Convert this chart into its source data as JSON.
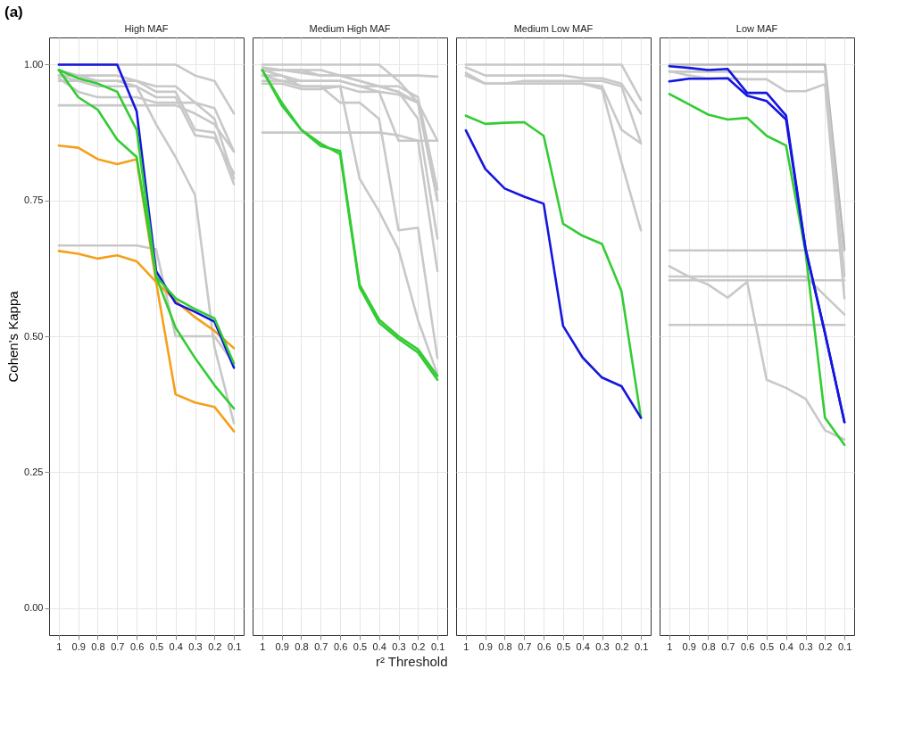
{
  "chart_data": [
    {
      "type": "line",
      "title": "High MAF",
      "ylabel": "Cohen's Kappa",
      "annotations": [
        "(a)"
      ],
      "grid": true,
      "categories": [
        "1",
        "0.9",
        "0.8",
        "0.7",
        "0.6",
        "0.5",
        "0.4",
        "0.3",
        "0.2",
        "0.1"
      ],
      "ylim": [
        -0.05,
        1.05
      ],
      "yticks": [
        {
          "value": 0,
          "label": "0.00"
        },
        {
          "value": 0.25,
          "label": "0.25"
        },
        {
          "value": 0.5,
          "label": "0.50"
        },
        {
          "value": 0.75,
          "label": "0.75"
        },
        {
          "value": 1,
          "label": "1.00"
        }
      ],
      "series": [
        {
          "color": "#c8c8c8",
          "values": [
            1.0,
            1.0,
            1.0,
            1.0,
            1.0,
            1.0,
            1.0,
            0.98,
            0.97,
            0.91
          ]
        },
        {
          "color": "#c8c8c8",
          "values": [
            0.98,
            0.98,
            0.98,
            0.98,
            0.97,
            0.96,
            0.96,
            0.93,
            0.9,
            0.79
          ]
        },
        {
          "color": "#c8c8c8",
          "values": [
            0.97,
            0.97,
            0.97,
            0.97,
            0.97,
            0.95,
            0.95,
            0.88,
            0.875,
            0.78
          ]
        },
        {
          "color": "#c8c8c8",
          "values": [
            0.975,
            0.95,
            0.94,
            0.94,
            0.94,
            0.93,
            0.93,
            0.93,
            0.92,
            0.84
          ]
        },
        {
          "color": "#c8c8c8",
          "values": [
            0.925,
            0.925,
            0.925,
            0.925,
            0.925,
            0.925,
            0.925,
            0.91,
            0.89,
            0.84
          ]
        },
        {
          "color": "#c8c8c8",
          "values": [
            0.98,
            0.97,
            0.96,
            0.96,
            0.96,
            0.94,
            0.94,
            0.87,
            0.865,
            0.8
          ]
        },
        {
          "color": "#c8c8c8",
          "values": [
            0.99,
            0.98,
            0.97,
            0.97,
            0.96,
            0.89,
            0.83,
            0.76,
            0.48,
            0.34
          ]
        },
        {
          "color": "#c8c8c8",
          "values": [
            0.667,
            0.667,
            0.667,
            0.667,
            0.667,
            0.66,
            0.5,
            0.5,
            0.5,
            0.45
          ]
        },
        {
          "color": "#f5a01a",
          "values": [
            0.851,
            0.847,
            0.826,
            0.817,
            0.826,
            0.6,
            0.393,
            0.378,
            0.37,
            0.325
          ]
        },
        {
          "color": "#f5a01a",
          "values": [
            0.657,
            0.652,
            0.643,
            0.649,
            0.638,
            0.6,
            0.565,
            0.535,
            0.51,
            0.478
          ]
        },
        {
          "color": "#33cc33",
          "values": [
            0.99,
            0.94,
            0.917,
            0.862,
            0.83,
            0.61,
            0.516,
            0.46,
            0.41,
            0.367
          ]
        },
        {
          "color": "#1515e0",
          "values": [
            1.0,
            1.0,
            1.0,
            1.0,
            0.914,
            0.62,
            0.561,
            0.545,
            0.527,
            0.442
          ]
        },
        {
          "color": "#33cc33",
          "values": [
            0.99,
            0.975,
            0.965,
            0.95,
            0.88,
            0.61,
            0.57,
            0.55,
            0.533,
            0.45
          ]
        }
      ]
    },
    {
      "type": "line",
      "title": "Medium High MAF",
      "xlabel": "r² Threshold",
      "grid": true,
      "tick_labels": "x",
      "categories": [
        "1",
        "0.9",
        "0.8",
        "0.7",
        "0.6",
        "0.5",
        "0.4",
        "0.3",
        "0.2",
        "0.1"
      ],
      "ylim": [
        -0.05,
        1.05
      ],
      "yticks": [
        0,
        0.25,
        0.5,
        0.75,
        1
      ],
      "series": [
        {
          "color": "#c8c8c8",
          "values": [
            1.0,
            1.0,
            1.0,
            1.0,
            1.0,
            1.0,
            1.0,
            0.97,
            0.93,
            0.75
          ]
        },
        {
          "color": "#c8c8c8",
          "values": [
            0.99,
            0.99,
            0.99,
            0.99,
            0.98,
            0.97,
            0.96,
            0.96,
            0.94,
            0.77
          ]
        },
        {
          "color": "#c8c8c8",
          "values": [
            0.98,
            0.98,
            0.97,
            0.97,
            0.97,
            0.96,
            0.96,
            0.95,
            0.93,
            0.75
          ]
        },
        {
          "color": "#c8c8c8",
          "values": [
            0.995,
            0.99,
            0.985,
            0.98,
            0.98,
            0.98,
            0.98,
            0.98,
            0.98,
            0.978
          ]
        },
        {
          "color": "#c8c8c8",
          "values": [
            0.965,
            0.965,
            0.955,
            0.955,
            0.96,
            0.95,
            0.95,
            0.945,
            0.93,
            0.86
          ]
        },
        {
          "color": "#c8c8c8",
          "values": [
            0.875,
            0.875,
            0.875,
            0.875,
            0.875,
            0.875,
            0.875,
            0.87,
            0.86,
            0.86
          ]
        },
        {
          "color": "#c8c8c8",
          "values": [
            0.98,
            0.97,
            0.96,
            0.96,
            0.93,
            0.93,
            0.9,
            0.695,
            0.7,
            0.46
          ]
        },
        {
          "color": "#c8c8c8",
          "values": [
            0.99,
            0.98,
            0.96,
            0.96,
            0.96,
            0.79,
            0.73,
            0.66,
            0.53,
            0.43
          ]
        },
        {
          "color": "#c8c8c8",
          "values": [
            0.97,
            0.97,
            0.97,
            0.97,
            0.97,
            0.96,
            0.95,
            0.86,
            0.86,
            0.62
          ]
        },
        {
          "color": "#c8c8c8",
          "values": [
            0.99,
            0.99,
            0.99,
            0.98,
            0.98,
            0.97,
            0.96,
            0.95,
            0.9,
            0.68
          ]
        },
        {
          "color": "#33cc33",
          "values": [
            0.99,
            0.93,
            0.88,
            0.85,
            0.841,
            0.595,
            0.531,
            0.5,
            0.476,
            0.427
          ]
        },
        {
          "color": "#33cc33",
          "values": [
            0.99,
            0.925,
            0.88,
            0.855,
            0.835,
            0.59,
            0.525,
            0.495,
            0.47,
            0.42
          ]
        }
      ]
    },
    {
      "type": "line",
      "title": "Medium Low MAF",
      "grid": true,
      "tick_labels": "x",
      "categories": [
        "1",
        "0.9",
        "0.8",
        "0.7",
        "0.6",
        "0.5",
        "0.4",
        "0.3",
        "0.2",
        "0.1"
      ],
      "ylim": [
        -0.05,
        1.05
      ],
      "yticks": [
        0,
        0.25,
        0.5,
        0.75,
        1
      ],
      "series": [
        {
          "color": "#c8c8c8",
          "values": [
            1.0,
            1.0,
            1.0,
            1.0,
            1.0,
            1.0,
            1.0,
            1.0,
            1.0,
            0.935
          ]
        },
        {
          "color": "#c8c8c8",
          "values": [
            0.995,
            0.98,
            0.98,
            0.98,
            0.98,
            0.98,
            0.975,
            0.975,
            0.965,
            0.91
          ]
        },
        {
          "color": "#c8c8c8",
          "values": [
            0.98,
            0.965,
            0.965,
            0.97,
            0.97,
            0.97,
            0.97,
            0.97,
            0.96,
            0.856
          ]
        },
        {
          "color": "#c8c8c8",
          "values": [
            0.985,
            0.965,
            0.965,
            0.965,
            0.965,
            0.965,
            0.965,
            0.96,
            0.88,
            0.855
          ]
        },
        {
          "color": "#c8c8c8",
          "values": [
            0.98,
            0.965,
            0.965,
            0.965,
            0.965,
            0.965,
            0.965,
            0.955,
            0.82,
            0.695
          ]
        },
        {
          "color": "#33cc33",
          "values": [
            0.906,
            0.891,
            0.893,
            0.894,
            0.869,
            0.707,
            0.685,
            0.67,
            0.583,
            0.35
          ]
        },
        {
          "color": "#1515e0",
          "values": [
            0.879,
            0.808,
            0.772,
            0.757,
            0.744,
            0.519,
            0.461,
            0.424,
            0.408,
            0.35
          ]
        }
      ]
    },
    {
      "type": "line",
      "title": "Low MAF",
      "grid": true,
      "tick_labels": "x",
      "categories": [
        "1",
        "0.9",
        "0.8",
        "0.7",
        "0.6",
        "0.5",
        "0.4",
        "0.3",
        "0.2",
        "0.1"
      ],
      "ylim": [
        -0.05,
        1.05
      ],
      "yticks": [
        0,
        0.25,
        0.5,
        0.75,
        1
      ],
      "series": [
        {
          "color": "#b8b8b8",
          "values": [
            1.0,
            1.0,
            1.0,
            1.0,
            1.0,
            1.0,
            1.0,
            1.0,
            1.0,
            0.66
          ]
        },
        {
          "color": "#c8c8c8",
          "values": [
            0.987,
            0.987,
            0.987,
            0.987,
            0.987,
            0.987,
            0.987,
            0.987,
            0.987,
            0.61
          ]
        },
        {
          "color": "#c8c8c8",
          "values": [
            0.988,
            0.98,
            0.975,
            0.975,
            0.973,
            0.973,
            0.951,
            0.951,
            0.964,
            0.57
          ]
        },
        {
          "color": "#c8c8c8",
          "values": [
            0.658,
            0.658,
            0.658,
            0.658,
            0.658,
            0.658,
            0.658,
            0.658,
            0.658,
            0.658
          ]
        },
        {
          "color": "#c8c8c8",
          "values": [
            0.603,
            0.603,
            0.603,
            0.603,
            0.603,
            0.603,
            0.603,
            0.603,
            0.603,
            0.603
          ]
        },
        {
          "color": "#c8c8c8",
          "values": [
            0.61,
            0.61,
            0.61,
            0.61,
            0.61,
            0.61,
            0.61,
            0.61,
            0.575,
            0.54
          ]
        },
        {
          "color": "#c8c8c8",
          "values": [
            0.521,
            0.521,
            0.521,
            0.521,
            0.521,
            0.521,
            0.521,
            0.521,
            0.521,
            0.521
          ]
        },
        {
          "color": "#c8c8c8",
          "values": [
            0.629,
            0.61,
            0.595,
            0.571,
            0.6,
            0.42,
            0.405,
            0.385,
            0.327,
            0.31
          ]
        },
        {
          "color": "#33cc33",
          "values": [
            0.946,
            0.927,
            0.908,
            0.899,
            0.902,
            0.869,
            0.851,
            0.655,
            0.35,
            0.3
          ]
        },
        {
          "color": "#1515e0",
          "values": [
            0.969,
            0.974,
            0.974,
            0.975,
            0.943,
            0.933,
            0.899,
            0.66,
            0.506,
            0.342
          ]
        },
        {
          "color": "#1515e0",
          "values": [
            0.997,
            0.994,
            0.99,
            0.992,
            0.948,
            0.948,
            0.906,
            0.662,
            0.506,
            0.342
          ]
        }
      ]
    }
  ]
}
